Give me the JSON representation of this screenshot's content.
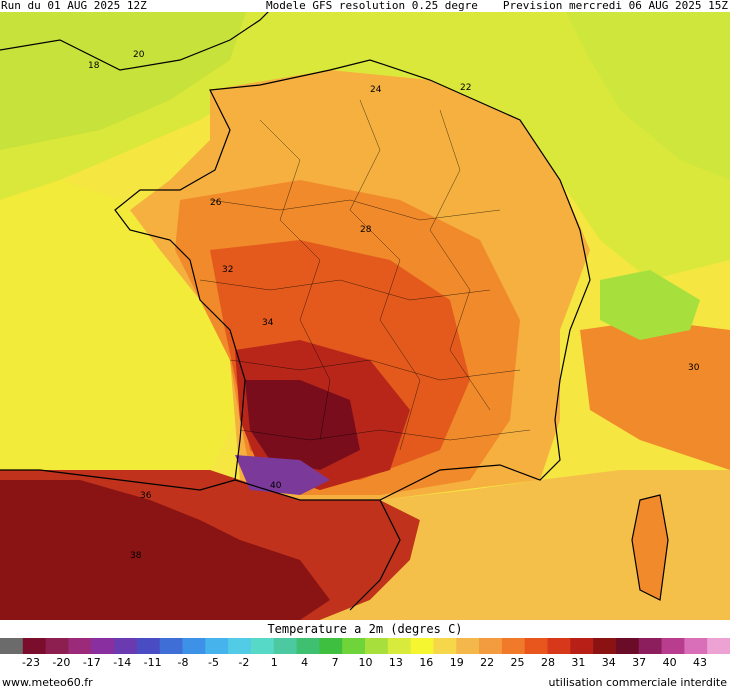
{
  "header": {
    "run": "Run du 01 AUG 2025 12Z",
    "model": "Modele GFS resolution 0.25 degre",
    "forecast": "Prevision mercredi 06 AUG 2025 15Z"
  },
  "map": {
    "variable": "Temperature a 2m (degres C)",
    "contour_labels": [
      "18",
      "20",
      "22",
      "24",
      "26",
      "28",
      "30",
      "32",
      "34",
      "36",
      "38",
      "40"
    ]
  },
  "legend": {
    "title": "Temperature a 2m (degres C)",
    "ticks": [
      "-23",
      "-20",
      "-17",
      "-14",
      "-11",
      "-8",
      "-5",
      "-2",
      "1",
      "4",
      "7",
      "10",
      "13",
      "16",
      "19",
      "22",
      "25",
      "28",
      "31",
      "34",
      "37",
      "40",
      "43"
    ],
    "colors": [
      "#6b6b6b",
      "#7a0d2c",
      "#8c1f4f",
      "#9b2a7a",
      "#8a2f9f",
      "#6a3bb0",
      "#4a4cc4",
      "#3f6fd6",
      "#3d91e6",
      "#47b3ec",
      "#52cbe6",
      "#56d9c6",
      "#4cc9a0",
      "#3fbf70",
      "#3fbf40",
      "#6fd43a",
      "#a7e03d",
      "#d8eb3d",
      "#f5f530",
      "#f7d74a",
      "#f4b84a",
      "#f39b3f",
      "#f07a2a",
      "#e8561d",
      "#d8381a",
      "#b81f16",
      "#8a1212",
      "#6a0b28",
      "#8d1e5e",
      "#b83d8e",
      "#d86fb8",
      "#eca3d4"
    ]
  },
  "footer": {
    "left": "www.meteo60.fr",
    "right": "utilisation commerciale interdite"
  }
}
